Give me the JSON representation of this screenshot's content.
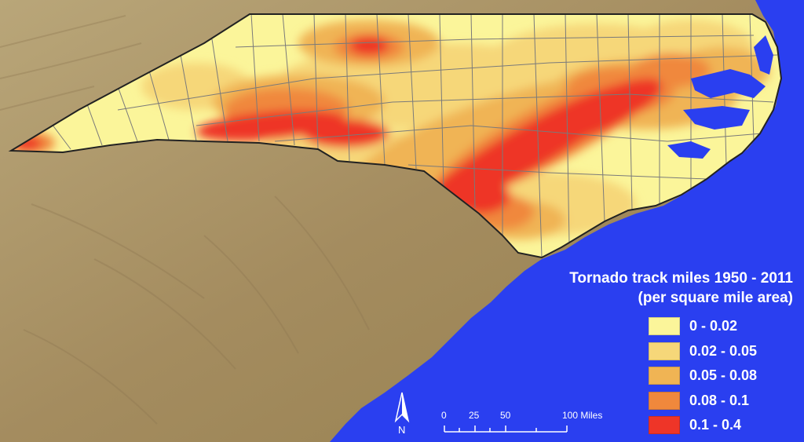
{
  "legend": {
    "title_line1": "Tornado track miles 1950 - 2011",
    "title_line2": "(per square mile area)",
    "classes": [
      {
        "label": "0 - 0.02",
        "color": "#fbf59a"
      },
      {
        "label": "0.02 - 0.05",
        "color": "#f6d779"
      },
      {
        "label": "0.05 - 0.08",
        "color": "#f0b454"
      },
      {
        "label": "0.08 - 0.1",
        "color": "#f0883c"
      },
      {
        "label": "0.1 - 0.4",
        "color": "#ee3528"
      }
    ]
  },
  "scale_bar": {
    "labels": [
      "0",
      "25",
      "50",
      "100 Miles"
    ]
  },
  "north_arrow": {
    "letter": "N"
  },
  "colors": {
    "water": "#2a3ff0",
    "land": "#a8936a",
    "county_lines": "#7a7a7a",
    "state_border": "#222222"
  }
}
